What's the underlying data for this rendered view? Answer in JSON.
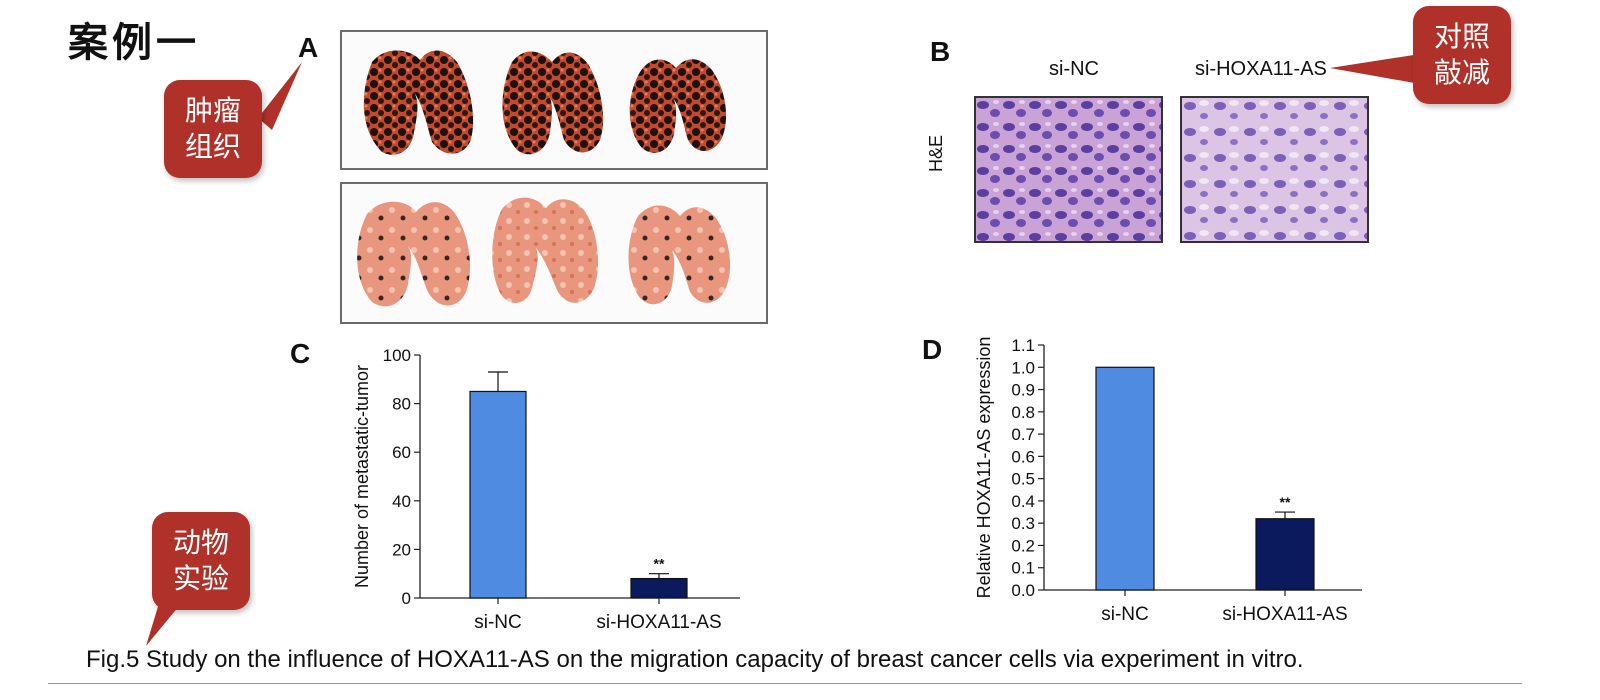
{
  "slide": {
    "title": "案例一",
    "caption": "Fig.5 Study on the influence of HOXA11-AS on the migration capacity of breast cancer cells via experiment in vitro."
  },
  "callouts": {
    "tumor": [
      "肿瘤",
      "组织"
    ],
    "control": [
      "对照",
      "敲减"
    ],
    "animal": [
      "动物",
      "实验"
    ]
  },
  "panels": {
    "a": "A",
    "b": "B",
    "c": "C",
    "d": "D"
  },
  "panel_b": {
    "col1": "si-NC",
    "col2": "si-HOXA11-AS",
    "row_label": "H&E"
  },
  "colors": {
    "callout": "#b0312a",
    "si_nc_bar": "#4f8be0",
    "knockdown_bar": "#0a1a5c"
  },
  "chart_data": [
    {
      "type": "bar",
      "panel": "C",
      "categories": [
        "si-NC",
        "si-HOXA11-AS"
      ],
      "values": [
        85,
        8
      ],
      "errors": [
        8,
        2
      ],
      "significance": [
        "",
        "**"
      ],
      "ylabel": "Number of metastatic-tumor",
      "ylim": [
        0,
        100
      ],
      "yticks": [
        0,
        20,
        40,
        60,
        80,
        100
      ],
      "ytick_labels": [
        "0",
        "20",
        "40",
        "60",
        "80",
        "100"
      ],
      "colors": [
        "#4f8be0",
        "#0a1a5c"
      ]
    },
    {
      "type": "bar",
      "panel": "D",
      "categories": [
        "si-NC",
        "si-HOXA11-AS"
      ],
      "values": [
        1.0,
        0.32
      ],
      "errors": [
        0,
        0.03
      ],
      "significance": [
        "",
        "**"
      ],
      "ylabel": "Relative HOXA11-AS expression",
      "ylim": [
        0,
        1.1
      ],
      "yticks": [
        0,
        0.1,
        0.2,
        0.3,
        0.4,
        0.5,
        0.6,
        0.7,
        0.8,
        0.9,
        1.0,
        1.1
      ],
      "ytick_labels": [
        "0.0",
        "0.1",
        "0.2",
        "0.3",
        "0.4",
        "0.5",
        "0.6",
        "0.7",
        "0.8",
        "0.9",
        "1.0",
        "1.1"
      ],
      "colors": [
        "#4f8be0",
        "#0a1a5c"
      ]
    }
  ]
}
